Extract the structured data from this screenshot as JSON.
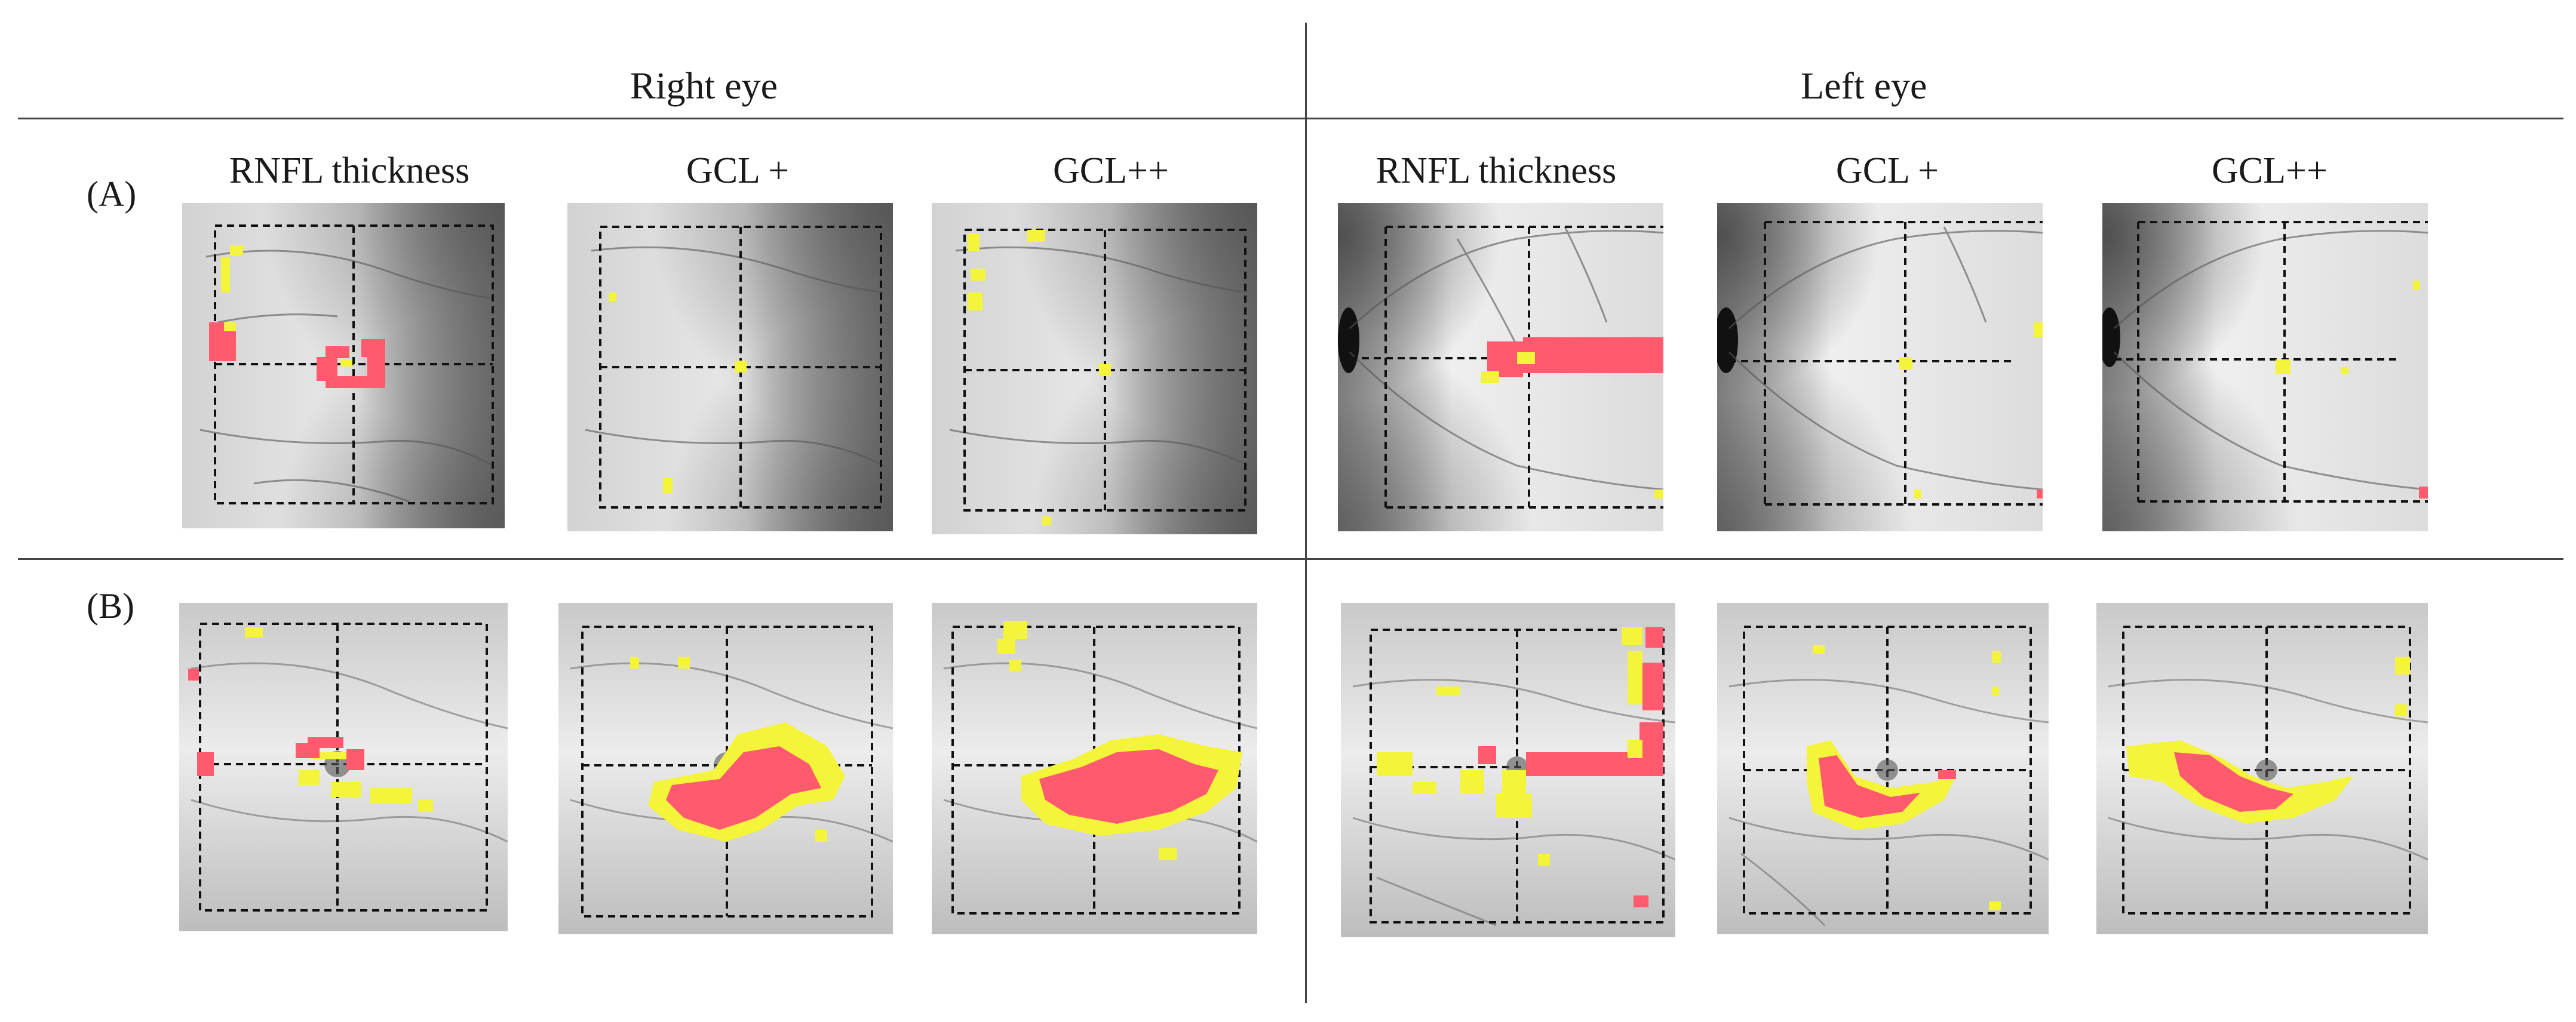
{
  "figure": {
    "eyes": {
      "right": "Right eye",
      "left": "Left eye"
    },
    "rows": [
      {
        "id": "A",
        "label": "(A)"
      },
      {
        "id": "B",
        "label": "(B)"
      }
    ],
    "columns": [
      {
        "id": "r-rnfl",
        "label": "RNFL thickness"
      },
      {
        "id": "r-gcl1",
        "label": "GCL +"
      },
      {
        "id": "r-gcl2",
        "label": "GCL++"
      },
      {
        "id": "l-rnfl",
        "label": "RNFL thickness"
      },
      {
        "id": "l-gcl1",
        "label": "GCL +"
      },
      {
        "id": "l-gcl2",
        "label": "GCL++"
      }
    ],
    "deviation_colors": {
      "abnormal": "#ff5a6e",
      "borderline": "#f4f43a"
    }
  }
}
